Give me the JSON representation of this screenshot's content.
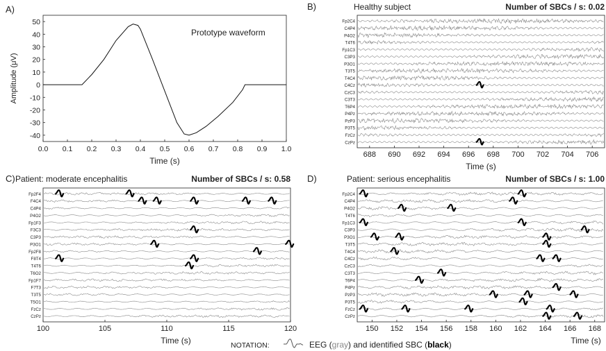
{
  "notation": {
    "label": "NOTATION:",
    "text_prefix": "EEG (",
    "text_gray": "gray",
    "text_mid": ") and identified SBC (",
    "text_black": "black",
    "text_suffix": ")"
  },
  "colors": {
    "eeg": "#8a8a8a",
    "sbc": "#000000",
    "axis": "#222222"
  },
  "chart_data": [
    {
      "panel": "A)",
      "type": "line",
      "title": "Prototype waveform",
      "xlabel": "Time (s)",
      "ylabel": "Amplitude (μV)",
      "xlim": [
        0,
        1
      ],
      "ylim": [
        -45,
        55
      ],
      "xticks": [
        "0.0",
        "0.1",
        "0.2",
        "0.3",
        "0.4",
        "0.5",
        "0.6",
        "0.7",
        "0.8",
        "0.9",
        "1.0"
      ],
      "yticks": [
        -40,
        -30,
        -20,
        -10,
        0,
        10,
        20,
        30,
        40,
        50
      ],
      "x": [
        0.0,
        0.16,
        0.2,
        0.25,
        0.3,
        0.35,
        0.37,
        0.39,
        0.4,
        0.45,
        0.5,
        0.55,
        0.58,
        0.6,
        0.63,
        0.67,
        0.72,
        0.78,
        0.82,
        0.83,
        1.0
      ],
      "y": [
        0,
        0,
        8,
        20,
        35,
        46,
        48,
        47,
        44,
        20,
        -5,
        -30,
        -39,
        -40,
        -38,
        -33,
        -25,
        -14,
        -4,
        0,
        0
      ]
    },
    {
      "panel": "B)",
      "type": "line",
      "title": "Healthy subject",
      "sbc_rate": "Number of SBCs / s: 0.02",
      "xlabel": "Time (s)",
      "xlim": [
        687,
        707
      ],
      "xticks": [
        688,
        690,
        692,
        694,
        696,
        698,
        700,
        702,
        704,
        706
      ],
      "channels": [
        "Fp2C4",
        "C4P4",
        "P4O2",
        "T4T6",
        "Fp1C3",
        "C3P3",
        "P3O1",
        "T3T5",
        "T4C4",
        "C4Cz",
        "CzC3",
        "C3T3",
        "T6P4",
        "P4Pz",
        "PzP3",
        "P3T5",
        "FzCz",
        "CzPz"
      ],
      "sbc_events": [
        {
          "channel": "C4Cz",
          "t": 696.9
        },
        {
          "channel": "CzPz",
          "t": 696.9
        }
      ]
    },
    {
      "panel": "C)",
      "type": "line",
      "title": "Patient: moderate encephalitis",
      "sbc_rate": "Number of SBCs / s: 0.58",
      "xlabel": "Time (s)",
      "xlim": [
        100,
        120
      ],
      "xticks": [
        100,
        105,
        110,
        115,
        120
      ],
      "channels": [
        "Fp2F4",
        "F4C4",
        "C4P4",
        "P4O2",
        "Fp1F3",
        "F3C3",
        "C3P3",
        "P3O1",
        "Fp2F8",
        "F8T4",
        "T4T6",
        "T6O2",
        "Fp1F7",
        "F7T3",
        "T3T5",
        "T5O1",
        "FzCz",
        "CzPz"
      ],
      "sbc_events": [
        {
          "channel": "Fp2F4",
          "t": 101.3
        },
        {
          "channel": "Fp2F4",
          "t": 107.0
        },
        {
          "channel": "F4C4",
          "t": 108.0
        },
        {
          "channel": "F4C4",
          "t": 109.2
        },
        {
          "channel": "F4C4",
          "t": 112.2
        },
        {
          "channel": "F4C4",
          "t": 116.4
        },
        {
          "channel": "F4C4",
          "t": 118.5
        },
        {
          "channel": "F3C3",
          "t": 112.2
        },
        {
          "channel": "P3O1",
          "t": 109.0
        },
        {
          "channel": "P3O1",
          "t": 119.9
        },
        {
          "channel": "Fp2F8",
          "t": 117.3
        },
        {
          "channel": "F8T4",
          "t": 101.3
        },
        {
          "channel": "F8T4",
          "t": 112.2
        },
        {
          "channel": "T4T6",
          "t": 111.8
        }
      ]
    },
    {
      "panel": "D)",
      "type": "line",
      "title": "Patient: serious encephalitis",
      "sbc_rate": "Number of SBCs / s: 1.00",
      "xlabel": "Time (s)",
      "xlim": [
        148.8,
        168.8
      ],
      "xticks": [
        150,
        152,
        154,
        156,
        158,
        160,
        162,
        164,
        166,
        168
      ],
      "channels": [
        "Fp2C4",
        "C4P4",
        "P4O2",
        "T4T6",
        "Fp1C3",
        "C3P3",
        "P3O1",
        "T3T5",
        "T4C4",
        "C4Cz",
        "CzC3",
        "C3T3",
        "T6P4",
        "P4Pz",
        "PzP3",
        "P3T5",
        "FzCz",
        "CzPz"
      ],
      "sbc_events": [
        {
          "channel": "Fp2C4",
          "t": 149.3
        },
        {
          "channel": "Fp2C4",
          "t": 162.1
        },
        {
          "channel": "C4P4",
          "t": 161.4
        },
        {
          "channel": "P4O2",
          "t": 152.4
        },
        {
          "channel": "P4O2",
          "t": 156.4
        },
        {
          "channel": "Fp1C3",
          "t": 149.3
        },
        {
          "channel": "Fp1C3",
          "t": 162.1
        },
        {
          "channel": "C3P3",
          "t": 167.2
        },
        {
          "channel": "P3O1",
          "t": 150.2
        },
        {
          "channel": "P3O1",
          "t": 152.2
        },
        {
          "channel": "P3O1",
          "t": 164.1
        },
        {
          "channel": "T3T5",
          "t": 164.1
        },
        {
          "channel": "T4C4",
          "t": 151.8
        },
        {
          "channel": "C4Cz",
          "t": 163.6
        },
        {
          "channel": "C4Cz",
          "t": 164.9
        },
        {
          "channel": "C3T3",
          "t": 155.6
        },
        {
          "channel": "T6P4",
          "t": 153.8
        },
        {
          "channel": "P4Pz",
          "t": 164.9
        },
        {
          "channel": "PzP3",
          "t": 159.8
        },
        {
          "channel": "PzP3",
          "t": 162.6
        },
        {
          "channel": "PzP3",
          "t": 166.3
        },
        {
          "channel": "P3T5",
          "t": 162.2
        },
        {
          "channel": "FzCz",
          "t": 149.3
        },
        {
          "channel": "FzCz",
          "t": 152.7
        },
        {
          "channel": "FzCz",
          "t": 157.8
        },
        {
          "channel": "FzCz",
          "t": 164.4
        },
        {
          "channel": "CzPz",
          "t": 164.1
        },
        {
          "channel": "CzPz",
          "t": 166.6
        }
      ]
    }
  ]
}
